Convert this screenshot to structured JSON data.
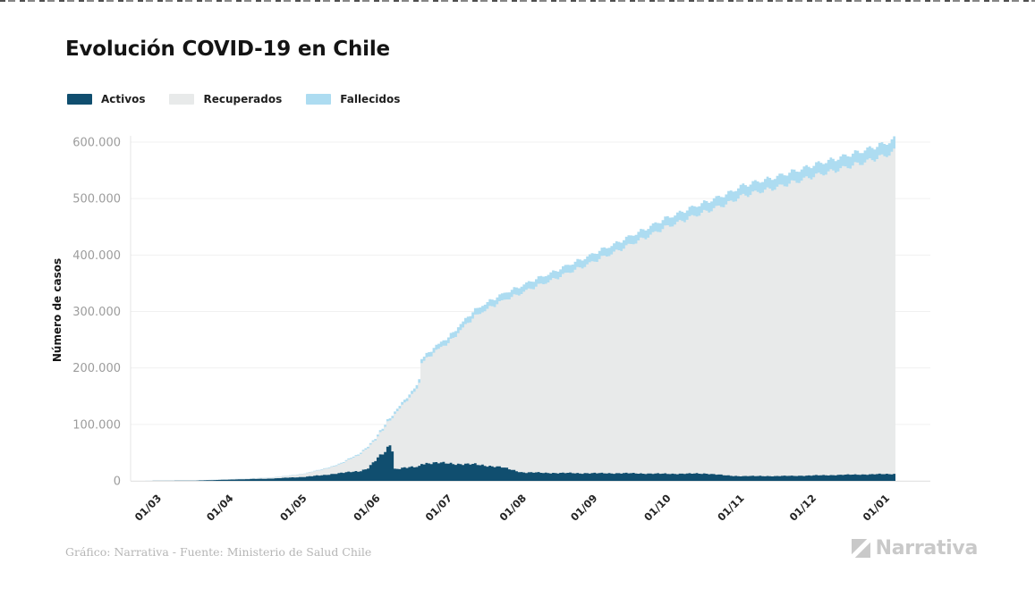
{
  "page": {
    "title": "Evolución COVID-19 en Chile",
    "footer_credit": "Gráfico: Narrativa - Fuente: Ministerio de Salud Chile",
    "brand": "Narrativa"
  },
  "legend": {
    "position": "top-left",
    "items": [
      {
        "label": "Activos",
        "color": "#104e6f"
      },
      {
        "label": "Recuperados",
        "color": "#e8eaea"
      },
      {
        "label": "Fallecidos",
        "color": "#addcf1"
      }
    ]
  },
  "chart_data": {
    "type": "area",
    "stacked": true,
    "bar_like_daily_steps": true,
    "title": "Evolución COVID-19 en Chile",
    "xlabel": "",
    "ylabel": "Número de casos",
    "grid": "horizontal",
    "legend_position": "top-left",
    "ylim": [
      0,
      620000
    ],
    "y_ticks": [
      {
        "value": 0,
        "label": "0"
      },
      {
        "value": 100000,
        "label": "100.000"
      },
      {
        "value": 200000,
        "label": "200.000"
      },
      {
        "value": 300000,
        "label": "300.000"
      },
      {
        "value": 400000,
        "label": "400.000"
      },
      {
        "value": 500000,
        "label": "500.000"
      },
      {
        "value": 600000,
        "label": "600.000"
      }
    ],
    "x_ticks": [
      {
        "f": 0.034,
        "label": "01/03"
      },
      {
        "f": 0.128,
        "label": "01/04"
      },
      {
        "f": 0.224,
        "label": "01/05"
      },
      {
        "f": 0.32,
        "label": "01/06"
      },
      {
        "f": 0.414,
        "label": "01/07"
      },
      {
        "f": 0.511,
        "label": "01/08"
      },
      {
        "f": 0.604,
        "label": "01/09"
      },
      {
        "f": 0.7,
        "label": "01/10"
      },
      {
        "f": 0.796,
        "label": "01/11"
      },
      {
        "f": 0.89,
        "label": "01/12"
      },
      {
        "f": 0.986,
        "label": "01/01"
      }
    ],
    "series_order": [
      "Activos",
      "Recuperados",
      "Fallecidos"
    ],
    "points": [
      {
        "f": 0.0,
        "activos": 0,
        "recuperados": 0,
        "fallecidos": 0
      },
      {
        "f": 0.034,
        "activos": 100,
        "recuperados": 50,
        "fallecidos": 0
      },
      {
        "f": 0.081,
        "activos": 400,
        "recuperados": 200,
        "fallecidos": 5
      },
      {
        "f": 0.127,
        "activos": 2200,
        "recuperados": 700,
        "fallecidos": 100
      },
      {
        "f": 0.157,
        "activos": 3200,
        "recuperados": 1100,
        "fallecidos": 200
      },
      {
        "f": 0.18,
        "activos": 4000,
        "recuperados": 1700,
        "fallecidos": 300
      },
      {
        "f": 0.203,
        "activos": 5500,
        "recuperados": 3050,
        "fallecidos": 450
      },
      {
        "f": 0.224,
        "activos": 7000,
        "recuperados": 5400,
        "fallecidos": 600
      },
      {
        "f": 0.25,
        "activos": 10000,
        "recuperados": 10100,
        "fallecidos": 900
      },
      {
        "f": 0.273,
        "activos": 14000,
        "recuperados": 15700,
        "fallecidos": 1300
      },
      {
        "f": 0.297,
        "activos": 17000,
        "recuperados": 29000,
        "fallecidos": 2000
      },
      {
        "f": 0.308,
        "activos": 22000,
        "recuperados": 36500,
        "fallecidos": 2500
      },
      {
        "f": 0.32,
        "activos": 38000,
        "recuperados": 36000,
        "fallecidos": 3000
      },
      {
        "f": 0.332,
        "activos": 52000,
        "recuperados": 45400,
        "fallecidos": 3600
      },
      {
        "f": 0.34,
        "activos": 71000,
        "recuperados": 43000,
        "fallecidos": 4000
      },
      {
        "f": 0.3425,
        "activos": 21000,
        "recuperados": 95900,
        "fallecidos": 4100
      },
      {
        "f": 0.355,
        "activos": 23000,
        "recuperados": 113200,
        "fallecidos": 4800
      },
      {
        "f": 0.367,
        "activos": 24000,
        "recuperados": 128500,
        "fallecidos": 5500
      },
      {
        "f": 0.3755,
        "activos": 25000,
        "recuperados": 144800,
        "fallecidos": 6200
      },
      {
        "f": 0.3785,
        "activos": 31000,
        "recuperados": 179000,
        "fallecidos": 7000
      },
      {
        "f": 0.396,
        "activos": 32000,
        "recuperados": 196500,
        "fallecidos": 8500
      },
      {
        "f": 0.414,
        "activos": 31000,
        "recuperados": 213000,
        "fallecidos": 10000
      },
      {
        "f": 0.431,
        "activos": 30000,
        "recuperados": 239200,
        "fallecidos": 10800
      },
      {
        "f": 0.449,
        "activos": 29000,
        "recuperados": 261700,
        "fallecidos": 11300
      },
      {
        "f": 0.466,
        "activos": 27000,
        "recuperados": 279200,
        "fallecidos": 11800
      },
      {
        "f": 0.484,
        "activos": 24000,
        "recuperados": 293800,
        "fallecidos": 12200
      },
      {
        "f": 0.511,
        "activos": 15000,
        "recuperados": 319000,
        "fallecidos": 13000
      },
      {
        "f": 0.554,
        "activos": 14000,
        "recuperados": 344400,
        "fallecidos": 13600
      },
      {
        "f": 0.6,
        "activos": 13500,
        "recuperados": 372300,
        "fallecidos": 14200
      },
      {
        "f": 0.647,
        "activos": 13500,
        "recuperados": 401500,
        "fallecidos": 15000
      },
      {
        "f": 0.7,
        "activos": 12500,
        "recuperados": 437500,
        "fallecidos": 16000
      },
      {
        "f": 0.752,
        "activos": 13000,
        "recuperados": 464800,
        "fallecidos": 17200
      },
      {
        "f": 0.78,
        "activos": 9200,
        "recuperados": 482000,
        "fallecidos": 17800
      },
      {
        "f": 0.796,
        "activos": 8500,
        "recuperados": 495300,
        "fallecidos": 18200
      },
      {
        "f": 0.846,
        "activos": 8500,
        "recuperados": 512200,
        "fallecidos": 19300
      },
      {
        "f": 0.89,
        "activos": 9500,
        "recuperados": 529500,
        "fallecidos": 20000
      },
      {
        "f": 0.939,
        "activos": 11000,
        "recuperados": 546000,
        "fallecidos": 21000
      },
      {
        "f": 0.986,
        "activos": 12000,
        "recuperados": 564200,
        "fallecidos": 21800
      },
      {
        "f": 1.0,
        "activos": 12500,
        "recuperados": 573500,
        "fallecidos": 22000
      }
    ]
  }
}
